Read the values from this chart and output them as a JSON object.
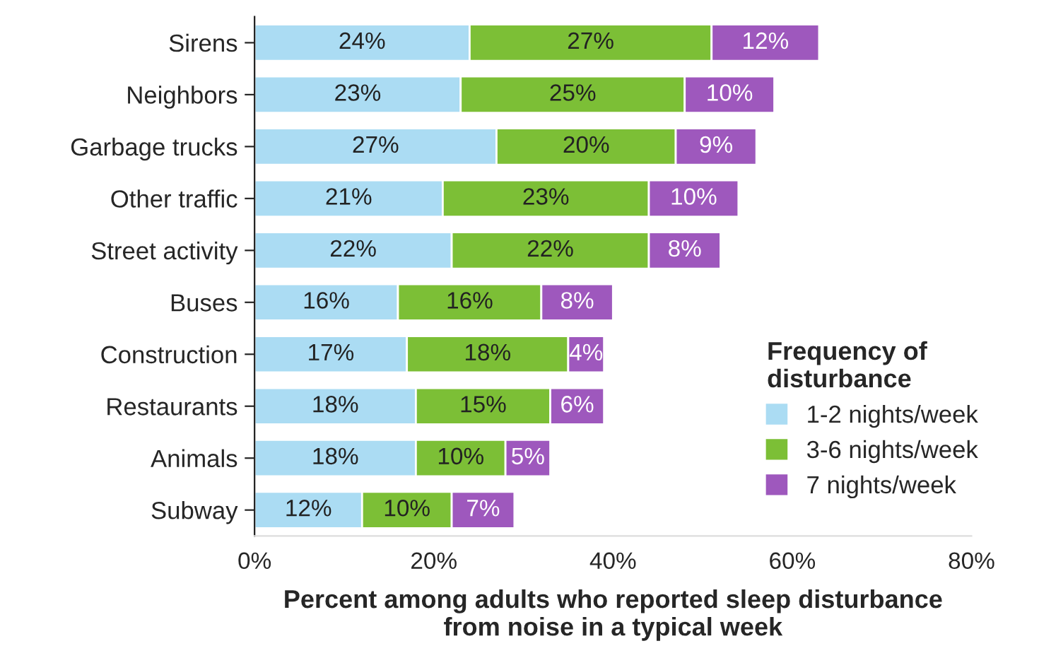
{
  "chart_data": {
    "type": "bar",
    "orientation": "horizontal",
    "stacked": true,
    "categories": [
      "Sirens",
      "Neighbors",
      "Garbage trucks",
      "Other traffic",
      "Street activity",
      "Buses",
      "Construction",
      "Restaurants",
      "Animals",
      "Subway"
    ],
    "series": [
      {
        "name": "1-2 nights/week",
        "color": "#abdcf3",
        "values": [
          24,
          23,
          27,
          21,
          22,
          16,
          17,
          18,
          18,
          12
        ],
        "value_labels": [
          "24%",
          "23%",
          "27%",
          "21%",
          "22%",
          "16%",
          "17%",
          "18%",
          "18%",
          "12%"
        ]
      },
      {
        "name": "3-6 nights/week",
        "color": "#7cbf36",
        "values": [
          27,
          25,
          20,
          23,
          22,
          16,
          18,
          15,
          10,
          10
        ],
        "value_labels": [
          "27%",
          "25%",
          "20%",
          "23%",
          "22%",
          "16%",
          "18%",
          "15%",
          "10%",
          "10%"
        ]
      },
      {
        "name": "7 nights/week",
        "color": "#9e58bd",
        "values": [
          12,
          10,
          9,
          10,
          8,
          8,
          4,
          6,
          5,
          7
        ],
        "value_labels": [
          "12%",
          "10%",
          "9%",
          "10%",
          "8%",
          "8%",
          "4%",
          "6%",
          "5%",
          "7%"
        ]
      }
    ],
    "xlim": [
      0,
      80
    ],
    "xticks": [
      {
        "value": 0,
        "label": "0%"
      },
      {
        "value": 20,
        "label": "20%"
      },
      {
        "value": 40,
        "label": "40%"
      },
      {
        "value": 60,
        "label": "60%"
      },
      {
        "value": 80,
        "label": "80%"
      }
    ],
    "xlabel": "Percent among adults who reported sleep disturbance\nfrom noise in a typical week",
    "legend_title": "Frequency of\ndisturbance",
    "legend": "bottom right",
    "grid": false
  }
}
